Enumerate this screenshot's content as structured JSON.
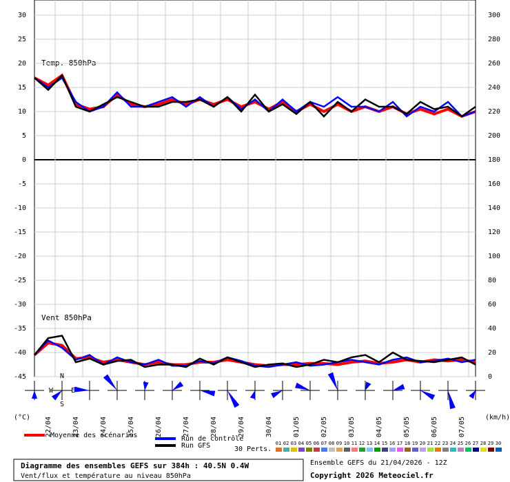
{
  "chart_data": {
    "type": "line",
    "temp_label": "Temp. 850hPa",
    "wind_label": "Vent 850hPa",
    "y_unit": "(°C)",
    "y2_unit": "(km/h)",
    "x": [
      0,
      12,
      24,
      36,
      48,
      60,
      72,
      84,
      96,
      108,
      120,
      132,
      144,
      156,
      168,
      180,
      192,
      204,
      216,
      228,
      240,
      252,
      264,
      276,
      288,
      300,
      312,
      324,
      336,
      348,
      360,
      372,
      384
    ],
    "xlim": [
      0,
      384
    ],
    "xticks": [
      {
        "value": 12,
        "label": "22/04"
      },
      {
        "value": 36,
        "label": "23/04"
      },
      {
        "value": 60,
        "label": "24/04"
      },
      {
        "value": 84,
        "label": "25/04"
      },
      {
        "value": 108,
        "label": "26/04"
      },
      {
        "value": 132,
        "label": "27/04"
      },
      {
        "value": 156,
        "label": "28/04"
      },
      {
        "value": 180,
        "label": "29/04"
      },
      {
        "value": 204,
        "label": "30/04"
      },
      {
        "value": 228,
        "label": "01/05"
      },
      {
        "value": 252,
        "label": "02/05"
      },
      {
        "value": 276,
        "label": "03/05"
      },
      {
        "value": 300,
        "label": "04/05"
      },
      {
        "value": 324,
        "label": "05/05"
      },
      {
        "value": 348,
        "label": "06/05"
      },
      {
        "value": 372,
        "label": "07/05"
      }
    ],
    "ylim": [
      -45,
      30
    ],
    "yticks": [
      30,
      25,
      20,
      15,
      10,
      5,
      0,
      -5,
      -10,
      -15,
      -20,
      -25,
      -30,
      -35,
      -40,
      -45
    ],
    "y2lim": [
      0,
      300
    ],
    "y2ticks": [
      300,
      280,
      260,
      240,
      220,
      200,
      180,
      160,
      140,
      120,
      100,
      80,
      60,
      40,
      20,
      0
    ],
    "grid": true,
    "series": [
      {
        "name": "Moyenne des scénarios",
        "color": "#ff0000",
        "width": 4,
        "temp": [
          17,
          15.5,
          17.5,
          11.5,
          10.5,
          11,
          13.5,
          11.5,
          11,
          11.5,
          12.5,
          11.5,
          12.5,
          11.5,
          12.5,
          11,
          12,
          10.5,
          12,
          10,
          11.5,
          10,
          11.5,
          10,
          11,
          10,
          11,
          9.5,
          10.5,
          9.5,
          10.5,
          9,
          10
        ],
        "wind": [
          18,
          28,
          26,
          15,
          16,
          12,
          14,
          12,
          10,
          12,
          10,
          10,
          12,
          12,
          14,
          12,
          10,
          9,
          10,
          10,
          11,
          11,
          10,
          12,
          13,
          11,
          12,
          14,
          12,
          14,
          13,
          14,
          12
        ]
      },
      {
        "name": "Run de contrôle",
        "color": "#0000ff",
        "width": 2.5,
        "temp": [
          17,
          15,
          17,
          12,
          10,
          11,
          14,
          11,
          11,
          12,
          13,
          11,
          13,
          11,
          13,
          10.5,
          12.5,
          10,
          12.5,
          10,
          12,
          11,
          13,
          11,
          11,
          10,
          12,
          9,
          11,
          10,
          12,
          9,
          10
        ],
        "wind": [
          18,
          30,
          24,
          14,
          18,
          10,
          16,
          12,
          10,
          14,
          9,
          9,
          13,
          11,
          16,
          13,
          9,
          8,
          10,
          12,
          9,
          10,
          12,
          14,
          12,
          10,
          14,
          16,
          12,
          13,
          15,
          12,
          14
        ]
      },
      {
        "name": "Run GFS",
        "color": "#000000",
        "width": 2.5,
        "temp": [
          17,
          14.5,
          17.5,
          11,
          10,
          11.5,
          13,
          12,
          11,
          11,
          12,
          12,
          12.5,
          11,
          13,
          10,
          13.5,
          10,
          11.5,
          9.5,
          12,
          9,
          12,
          10,
          12.5,
          11,
          11,
          9.5,
          12,
          10.5,
          11,
          9,
          11
        ],
        "wind": [
          18,
          32,
          34,
          12,
          15,
          10,
          13,
          14,
          8,
          10,
          10,
          8,
          15,
          10,
          16,
          12,
          8,
          10,
          11,
          8,
          10,
          14,
          12,
          16,
          18,
          12,
          20,
          14,
          13,
          12,
          14,
          16,
          10
        ]
      }
    ],
    "perturbations_label": "30 Perts.",
    "perturbations": [
      {
        "name": "01",
        "color": "#e07030"
      },
      {
        "name": "02",
        "color": "#40b0a0"
      },
      {
        "name": "03",
        "color": "#e0c000"
      },
      {
        "name": "04",
        "color": "#8040c0"
      },
      {
        "name": "05",
        "color": "#808000"
      },
      {
        "name": "06",
        "color": "#c04040"
      },
      {
        "name": "07",
        "color": "#4080e0"
      },
      {
        "name": "08",
        "color": "#c0c0c0"
      },
      {
        "name": "09",
        "color": "#e0a060"
      },
      {
        "name": "10",
        "color": "#606060"
      },
      {
        "name": "11",
        "color": "#f08080"
      },
      {
        "name": "12",
        "color": "#20a020"
      },
      {
        "name": "13",
        "color": "#80c0ff"
      },
      {
        "name": "14",
        "color": "#00a000"
      },
      {
        "name": "15",
        "color": "#404080"
      },
      {
        "name": "16",
        "color": "#a0a0ff"
      },
      {
        "name": "17",
        "color": "#e060e0"
      },
      {
        "name": "18",
        "color": "#a06020"
      },
      {
        "name": "19",
        "color": "#6060c0"
      },
      {
        "name": "20",
        "color": "#c0a0e0"
      },
      {
        "name": "21",
        "color": "#a0e040"
      },
      {
        "name": "22",
        "color": "#e08000"
      },
      {
        "name": "23",
        "color": "#808080"
      },
      {
        "name": "24",
        "color": "#20c0c0"
      },
      {
        "name": "25",
        "color": "#c080c0"
      },
      {
        "name": "26",
        "color": "#00c060"
      },
      {
        "name": "27",
        "color": "#000080"
      },
      {
        "name": "28",
        "color": "#e0e000"
      },
      {
        "name": "29",
        "color": "#800000"
      },
      {
        "name": "30",
        "color": "#0060c0"
      }
    ],
    "compass": [
      "N",
      "E",
      "S",
      "W"
    ],
    "run_info": "Ensemble GEFS du 21/04/2026 - 12Z",
    "title": "Diagramme des ensembles GEFS sur 384h : 40.5N 0.4W",
    "subtitle": "Vent/flux et température au niveau 850hPa",
    "copyright": "Copyright 2026 Meteociel.fr"
  }
}
